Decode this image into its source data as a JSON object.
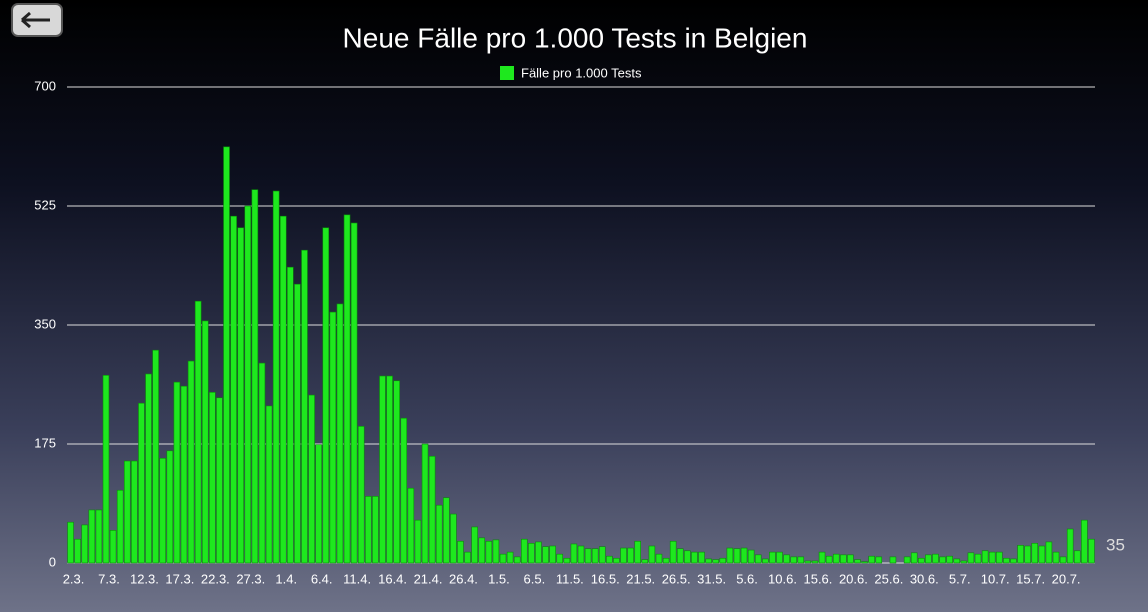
{
  "chart_data": {
    "type": "bar",
    "title": "Neue Fälle pro 1.000 Tests in Belgien",
    "categories": [
      "2.3.",
      null,
      null,
      null,
      null,
      "7.3.",
      null,
      null,
      null,
      null,
      "12.3.",
      null,
      null,
      null,
      null,
      "17.3.",
      null,
      null,
      null,
      null,
      "22.3.",
      null,
      null,
      null,
      null,
      "27.3.",
      null,
      null,
      null,
      null,
      "1.4.",
      null,
      null,
      null,
      null,
      "6.4.",
      null,
      null,
      null,
      null,
      "11.4.",
      null,
      null,
      null,
      null,
      "16.4.",
      null,
      null,
      null,
      null,
      "21.4.",
      null,
      null,
      null,
      null,
      "26.4.",
      null,
      null,
      null,
      null,
      "1.5.",
      null,
      null,
      null,
      null,
      "6.5.",
      null,
      null,
      null,
      null,
      "11.5.",
      null,
      null,
      null,
      null,
      "16.5.",
      null,
      null,
      null,
      null,
      "21.5.",
      null,
      null,
      null,
      null,
      "26.5.",
      null,
      null,
      null,
      null,
      "31.5.",
      null,
      null,
      null,
      null,
      "5.6.",
      null,
      null,
      null,
      null,
      "10.6.",
      null,
      null,
      null,
      null,
      "15.6.",
      null,
      null,
      null,
      null,
      "20.6.",
      null,
      null,
      null,
      null,
      "25.6.",
      null,
      null,
      null,
      null,
      "30.6.",
      null,
      null,
      null,
      null,
      "5.7.",
      null,
      null,
      null,
      null,
      "10.7.",
      null,
      null,
      null,
      null,
      "15.7.",
      null,
      null,
      null,
      null,
      "20.7.",
      null,
      null,
      null,
      null
    ],
    "series": [
      {
        "name": "Fälle pro 1.000 Tests",
        "color": "#1ee81e",
        "values": [
          60,
          35,
          56,
          78,
          78,
          276,
          48,
          107,
          150,
          150,
          235,
          278,
          313,
          154,
          165,
          266,
          260,
          297,
          385,
          356,
          251,
          243,
          612,
          510,
          493,
          525,
          549,
          294,
          231,
          547,
          510,
          435,
          410,
          460,
          247,
          174,
          493,
          369,
          381,
          512,
          500,
          201,
          98,
          98,
          275,
          275,
          268,
          213,
          110,
          63,
          175,
          157,
          85,
          96,
          72,
          32,
          16,
          53,
          37,
          32,
          34,
          13,
          16,
          9,
          35,
          29,
          31,
          24,
          25,
          13,
          7,
          28,
          25,
          21,
          21,
          24,
          10,
          7,
          22,
          22,
          32,
          5,
          25,
          13,
          7,
          32,
          21,
          18,
          16,
          16,
          6,
          5,
          7,
          22,
          21,
          22,
          19,
          12,
          6,
          16,
          16,
          12,
          9,
          9,
          3,
          3,
          16,
          10,
          13,
          12,
          12,
          5,
          2,
          10,
          9,
          0,
          9,
          0,
          9,
          15,
          7,
          12,
          13,
          9,
          10,
          6,
          3,
          15,
          13,
          18,
          16,
          16,
          7,
          6,
          26,
          25,
          29,
          25,
          31,
          16,
          9,
          50,
          18,
          63,
          35
        ]
      }
    ],
    "ylim": [
      0,
      700
    ],
    "yticks": [
      0,
      175,
      350,
      525,
      700
    ],
    "grid": true,
    "legend": "top"
  }
}
